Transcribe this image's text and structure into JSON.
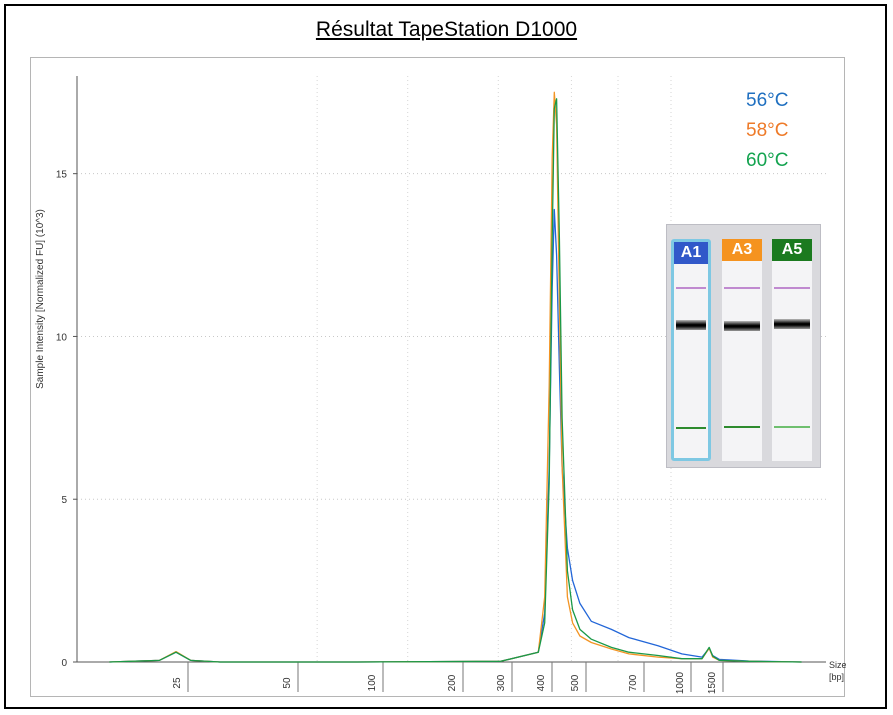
{
  "title": "Résultat TapeStation D1000",
  "colors": {
    "blue": "#2266d8",
    "orange": "#f39423",
    "green": "#1a9948"
  },
  "legend": [
    {
      "label": "56°C",
      "color": "#1f6fc0"
    },
    {
      "label": "58°C",
      "color": "#ee7a28"
    },
    {
      "label": "60°C",
      "color": "#13a34f"
    }
  ],
  "gel": {
    "lanes": [
      {
        "label": "A1",
        "label_bg": "#3158c9",
        "selected": true
      },
      {
        "label": "A3",
        "label_bg": "#f5931f",
        "selected": false
      },
      {
        "label": "A5",
        "label_bg": "#1b7a1f",
        "selected": false
      }
    ]
  },
  "chart_data": {
    "type": "line",
    "ylabel": "Sample Intensity [Normalized FU] (10^3)",
    "xlabel": "Size",
    "xunit": "[bp]",
    "ylim": [
      0,
      18
    ],
    "y_ticks": [
      0,
      5,
      10,
      15
    ],
    "x_ticks": [
      "25",
      "50",
      "100",
      "200",
      "300",
      "400",
      "500",
      "700",
      "1000",
      "1500"
    ],
    "x_scale": "log",
    "grid": true,
    "series": [
      {
        "name": "56°C",
        "color": "#2266d8",
        "x": [
          15,
          22,
          25,
          28,
          35,
          100,
          300,
          400,
          420,
          435,
          445,
          452,
          460,
          470,
          480,
          500,
          520,
          550,
          600,
          700,
          800,
          1000,
          1200,
          1400,
          1480,
          1520,
          1600,
          2000,
          3000
        ],
        "y": [
          0,
          0.05,
          0.3,
          0.05,
          0,
          0,
          0.02,
          0.3,
          1.5,
          6.0,
          11.5,
          13.9,
          12.5,
          9.0,
          6.0,
          3.5,
          2.5,
          1.8,
          1.25,
          1.0,
          0.75,
          0.5,
          0.25,
          0.15,
          0.42,
          0.2,
          0.08,
          0.03,
          0
        ]
      },
      {
        "name": "58°C",
        "color": "#f39423",
        "x": [
          15,
          22,
          25,
          28,
          35,
          100,
          300,
          400,
          420,
          435,
          445,
          452,
          460,
          470,
          480,
          500,
          520,
          550,
          600,
          700,
          800,
          1000,
          1200,
          1400,
          1480,
          1520,
          1600,
          2000,
          3000
        ],
        "y": [
          0,
          0.05,
          0.32,
          0.05,
          0,
          0,
          0.02,
          0.3,
          2.0,
          8.5,
          15.5,
          17.5,
          16.5,
          11.0,
          6.0,
          2.0,
          1.2,
          0.8,
          0.6,
          0.4,
          0.25,
          0.15,
          0.1,
          0.1,
          0.42,
          0.15,
          0.05,
          0.02,
          0
        ]
      },
      {
        "name": "60°C",
        "color": "#1a9948",
        "x": [
          15,
          22,
          25,
          28,
          35,
          100,
          300,
          400,
          420,
          435,
          445,
          452,
          460,
          470,
          480,
          500,
          520,
          550,
          600,
          700,
          800,
          1000,
          1200,
          1400,
          1480,
          1520,
          1600,
          2000,
          3000
        ],
        "y": [
          0,
          0.05,
          0.3,
          0.05,
          0,
          0,
          0.02,
          0.3,
          1.2,
          5.5,
          13.0,
          17.0,
          17.3,
          13.0,
          7.5,
          2.8,
          1.6,
          1.0,
          0.7,
          0.45,
          0.3,
          0.2,
          0.1,
          0.1,
          0.45,
          0.18,
          0.05,
          0.02,
          0
        ]
      }
    ]
  }
}
